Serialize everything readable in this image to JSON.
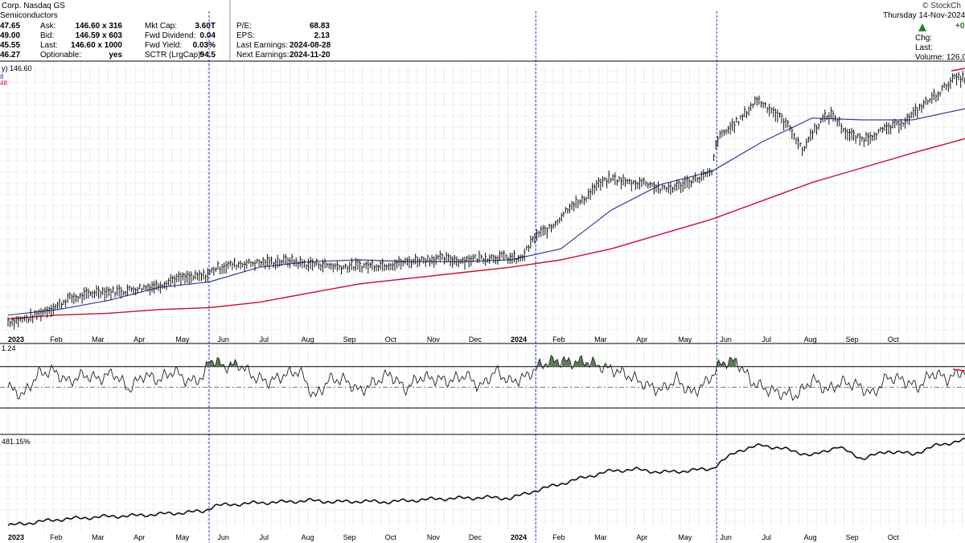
{
  "header": {
    "title": "Corp. Nasdaq GS",
    "industry": "Semiconductors",
    "source": "© StockCh",
    "date": "Thursday  14-Nov-2024",
    "left_values": [
      "47.65",
      "49.00",
      "45.55",
      "46.27"
    ],
    "col1": {
      "labels": [
        "Ask:",
        "Bid:",
        "Last:",
        "Optionable:"
      ],
      "values": [
        "146.60 x 316",
        "146.59 x 603",
        "146.60 x 1000",
        "yes"
      ]
    },
    "col2": {
      "labels": [
        "Mkt Cap:",
        "Fwd Dividend:",
        "Fwd Yield:",
        "SCTR (LrgCap):"
      ],
      "values": [
        "3.60T",
        "0.04",
        "0.03%",
        "94.5"
      ]
    },
    "col3": {
      "labels": [
        "P/E:",
        "EPS:",
        "Last Earnings:",
        "Next Earnings:"
      ],
      "values": [
        "68.83",
        "2.13",
        "2024-08-28",
        "2024-11-20"
      ]
    },
    "right_labels": [
      "Chg:",
      "Last:",
      "Volume: 126,0"
    ],
    "chg_value": "+0",
    "price_label": "y) 146.60",
    "ma_labels": [
      "8",
      "48"
    ],
    "rsi_label": "1.24",
    "perf_label": "481.15%",
    "colors": {
      "up_arrow": "#2e7d32",
      "chg_green": "#1b7f1b",
      "ma_blue": "#2f3d9c",
      "ma_red": "#c8102e",
      "rsi_fill": "#5b7f57",
      "event_line": "#1f3cc8"
    }
  },
  "chart_data": [
    {
      "type": "line",
      "panel": "price",
      "description_free": true,
      "x_labels": [
        "2023",
        "Feb",
        "Mar",
        "Apr",
        "May",
        "Jun",
        "Jul",
        "Aug",
        "Sep",
        "Oct",
        "Nov",
        "Dec",
        "2024",
        "Feb",
        "Mar",
        "Apr",
        "May",
        "Jun",
        "Jul",
        "Aug",
        "Sep",
        "Oct"
      ],
      "x_bold": [
        "2023",
        "2024"
      ],
      "x_range": [
        2023.0,
        2024.92
      ],
      "y_range": [
        10,
        155
      ],
      "event_dates": [
        2023.4,
        2024.05,
        2024.41
      ],
      "series": [
        {
          "kind": "ohlc",
          "x": [
            2023.0,
            2023.04,
            2023.08,
            2023.1,
            2023.12,
            2023.14,
            2023.16,
            2023.18,
            2023.2,
            2023.23,
            2023.26,
            2023.3,
            2023.33,
            2023.36,
            2023.39,
            2023.4,
            2023.41,
            2023.44,
            2023.48,
            2023.52,
            2023.56,
            2023.59,
            2023.62,
            2023.66,
            2023.7,
            2023.74,
            2023.78,
            2023.82,
            2023.86,
            2023.9,
            2023.94,
            2023.98,
            2024.02,
            2024.05,
            2024.08,
            2024.12,
            2024.14,
            2024.17,
            2024.2,
            2024.24,
            2024.27,
            2024.3,
            2024.33,
            2024.36,
            2024.4,
            2024.41,
            2024.43,
            2024.46,
            2024.49,
            2024.52,
            2024.54,
            2024.56,
            2024.58,
            2024.6,
            2024.62,
            2024.64,
            2024.67,
            2024.7,
            2024.73,
            2024.76,
            2024.79,
            2024.82,
            2024.85,
            2024.88,
            2024.92
          ],
          "values": [
            14.3,
            16.0,
            21.0,
            23.0,
            27.0,
            27.5,
            29.0,
            31.0,
            30.5,
            31.0,
            32.5,
            34.0,
            37.5,
            38.0,
            39.0,
            40.5,
            43.0,
            45.0,
            46.0,
            46.5,
            47.5,
            45.5,
            45.5,
            44.0,
            44.5,
            45.0,
            46.0,
            48.0,
            48.5,
            47.5,
            49.0,
            49.5,
            48.0,
            61.0,
            65.0,
            78.0,
            79.0,
            88.0,
            92.0,
            89.5,
            90.0,
            86.0,
            87.5,
            91.0,
            95.0,
            113.0,
            118.0,
            125.0,
            135.0,
            129.0,
            124.0,
            118.0,
            107.0,
            117.0,
            124.0,
            127.0,
            116.0,
            113.0,
            117.0,
            120.0,
            124.0,
            132.0,
            138.0,
            146.0,
            146.6
          ]
        },
        {
          "name": "",
          "kind": "ma50",
          "x": [
            2023.0,
            2023.1,
            2023.2,
            2023.3,
            2023.4,
            2023.5,
            2023.6,
            2023.7,
            2023.8,
            2023.9,
            2024.0,
            2024.1,
            2024.2,
            2024.3,
            2024.4,
            2024.5,
            2024.6,
            2024.7,
            2024.8,
            2024.92
          ],
          "values": [
            18,
            21,
            26,
            33,
            36,
            44,
            47,
            48,
            47,
            47,
            48,
            54,
            75,
            89,
            96,
            112,
            125,
            124,
            124,
            131
          ]
        },
        {
          "name": "",
          "kind": "ma200",
          "x": [
            2023.0,
            2023.1,
            2023.2,
            2023.3,
            2023.4,
            2023.5,
            2023.6,
            2023.7,
            2023.8,
            2023.9,
            2024.0,
            2024.1,
            2024.2,
            2024.3,
            2024.4,
            2024.5,
            2024.6,
            2024.7,
            2024.8,
            2024.92
          ],
          "values": [
            16,
            18,
            19,
            21,
            22,
            25,
            30,
            35,
            38,
            41,
            44,
            48,
            54,
            62,
            70,
            80,
            90,
            98,
            106,
            115
          ]
        }
      ]
    },
    {
      "type": "area",
      "panel": "rsi",
      "y_range": [
        20,
        90
      ],
      "levels": [
        70,
        50,
        30
      ],
      "x": [
        2023.0,
        2023.03,
        2023.06,
        2023.09,
        2023.12,
        2023.15,
        2023.18,
        2023.21,
        2023.24,
        2023.27,
        2023.3,
        2023.33,
        2023.36,
        2023.39,
        2023.4,
        2023.43,
        2023.46,
        2023.49,
        2023.52,
        2023.55,
        2023.58,
        2023.61,
        2023.64,
        2023.67,
        2023.7,
        2023.73,
        2023.76,
        2023.79,
        2023.82,
        2023.85,
        2023.88,
        2023.91,
        2023.94,
        2023.97,
        2024.0,
        2024.03,
        2024.06,
        2024.09,
        2024.12,
        2024.15,
        2024.18,
        2024.21,
        2024.24,
        2024.27,
        2024.3,
        2024.33,
        2024.36,
        2024.39,
        2024.42,
        2024.45,
        2024.48,
        2024.51,
        2024.54,
        2024.57,
        2024.6,
        2024.63,
        2024.66,
        2024.69,
        2024.72,
        2024.75,
        2024.78,
        2024.81,
        2024.84,
        2024.87,
        2024.9,
        2024.92
      ],
      "values": [
        50,
        42,
        63,
        66,
        55,
        62,
        58,
        64,
        48,
        62,
        57,
        66,
        55,
        60,
        78,
        70,
        72,
        60,
        55,
        62,
        66,
        40,
        58,
        57,
        46,
        55,
        63,
        48,
        60,
        58,
        56,
        62,
        50,
        66,
        55,
        60,
        72,
        76,
        74,
        75,
        70,
        66,
        60,
        52,
        47,
        58,
        44,
        55,
        74,
        75,
        55,
        48,
        44,
        42,
        58,
        47,
        55,
        52,
        43,
        60,
        57,
        50,
        64,
        58,
        66,
        63
      ]
    },
    {
      "type": "line",
      "panel": "performance",
      "y_range": [
        -5,
        120
      ],
      "x": [
        2023.0,
        2023.05,
        2023.1,
        2023.15,
        2023.2,
        2023.25,
        2023.3,
        2023.35,
        2023.39,
        2023.41,
        2023.45,
        2023.5,
        2023.55,
        2023.6,
        2023.65,
        2023.7,
        2023.75,
        2023.8,
        2023.85,
        2023.9,
        2023.95,
        2024.0,
        2024.05,
        2024.1,
        2024.15,
        2024.2,
        2024.25,
        2024.3,
        2024.35,
        2024.4,
        2024.45,
        2024.5,
        2024.55,
        2024.6,
        2024.65,
        2024.7,
        2024.75,
        2024.8,
        2024.85,
        2024.9,
        2024.92
      ],
      "values": [
        0,
        4,
        8,
        10,
        12,
        13,
        15,
        17,
        19,
        26,
        28,
        30,
        31,
        33,
        31,
        32,
        31,
        33,
        35,
        36,
        37,
        36,
        46,
        55,
        64,
        72,
        74,
        70,
        72,
        75,
        98,
        106,
        100,
        92,
        104,
        88,
        98,
        94,
        106,
        112,
        112
      ]
    }
  ]
}
